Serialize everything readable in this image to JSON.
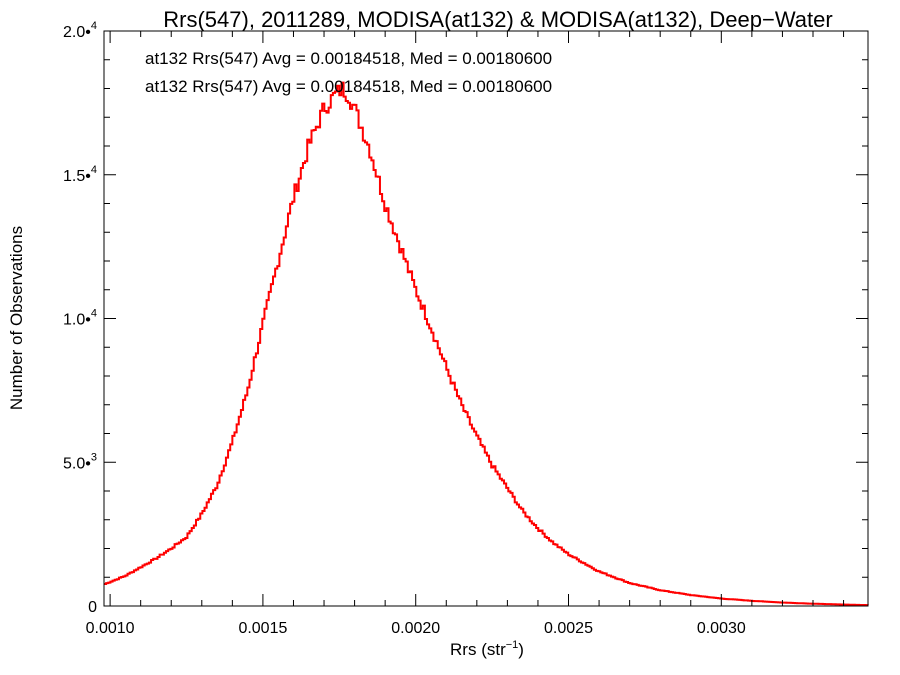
{
  "chart_data": {
    "type": "step",
    "title": "Rrs(547), 2011289, MODISA(at132) & MODISA(at132), Deep−Water",
    "xlabel": "Rrs (str",
    "xlabel_sup": "−1",
    "xlabel_end": ")",
    "ylabel": "Number of Observations",
    "xlim": [
      0.00098,
      0.00348
    ],
    "ylim": [
      0,
      20000
    ],
    "x_ticks": [
      {
        "value": 0.001,
        "label": "0.0010"
      },
      {
        "value": 0.0015,
        "label": "0.0015"
      },
      {
        "value": 0.002,
        "label": "0.0020"
      },
      {
        "value": 0.0025,
        "label": "0.0025"
      },
      {
        "value": 0.003,
        "label": "0.0030"
      }
    ],
    "y_ticks": [
      {
        "value": 0,
        "label": "0",
        "sup": ""
      },
      {
        "value": 5000,
        "label": "5.0•",
        "sup": "3"
      },
      {
        "value": 10000,
        "label": "1.0•",
        "sup": "4"
      },
      {
        "value": 15000,
        "label": "1.5•",
        "sup": "4"
      },
      {
        "value": 20000,
        "label": "2.0•",
        "sup": "4"
      }
    ],
    "annotations": [
      {
        "text": "at132 Rrs(547) Avg = 0.00184518, Med = 0.00180600",
        "color": "#000000"
      },
      {
        "text": "at132 Rrs(547) Avg = 0.00184518, Med = 0.00180600",
        "color": "#ff0000"
      }
    ],
    "series": [
      {
        "name": "at132 Rrs(547)",
        "color": "#ff0000",
        "x": [
          0.00098,
          0.00105,
          0.0011,
          0.00115,
          0.0012,
          0.00125,
          0.0013,
          0.00135,
          0.0014,
          0.00145,
          0.0015,
          0.00155,
          0.0016,
          0.00165,
          0.0017,
          0.00173,
          0.00176,
          0.00178,
          0.0018,
          0.00185,
          0.0019,
          0.00195,
          0.002,
          0.00205,
          0.0021,
          0.00215,
          0.0022,
          0.00225,
          0.0023,
          0.00235,
          0.0024,
          0.00245,
          0.0025,
          0.00255,
          0.0026,
          0.00265,
          0.0027,
          0.0028,
          0.0029,
          0.003,
          0.0031,
          0.0032,
          0.0033,
          0.0034,
          0.00348
        ],
        "y": [
          750,
          1050,
          1350,
          1650,
          2000,
          2400,
          3200,
          4200,
          5700,
          7500,
          9800,
          12000,
          14200,
          16000,
          17300,
          17700,
          18000,
          17800,
          17300,
          15900,
          14000,
          12500,
          11000,
          9700,
          8300,
          7000,
          5900,
          4900,
          4100,
          3300,
          2700,
          2200,
          1800,
          1500,
          1200,
          1000,
          800,
          550,
          380,
          260,
          180,
          120,
          80,
          50,
          30
        ]
      }
    ]
  }
}
